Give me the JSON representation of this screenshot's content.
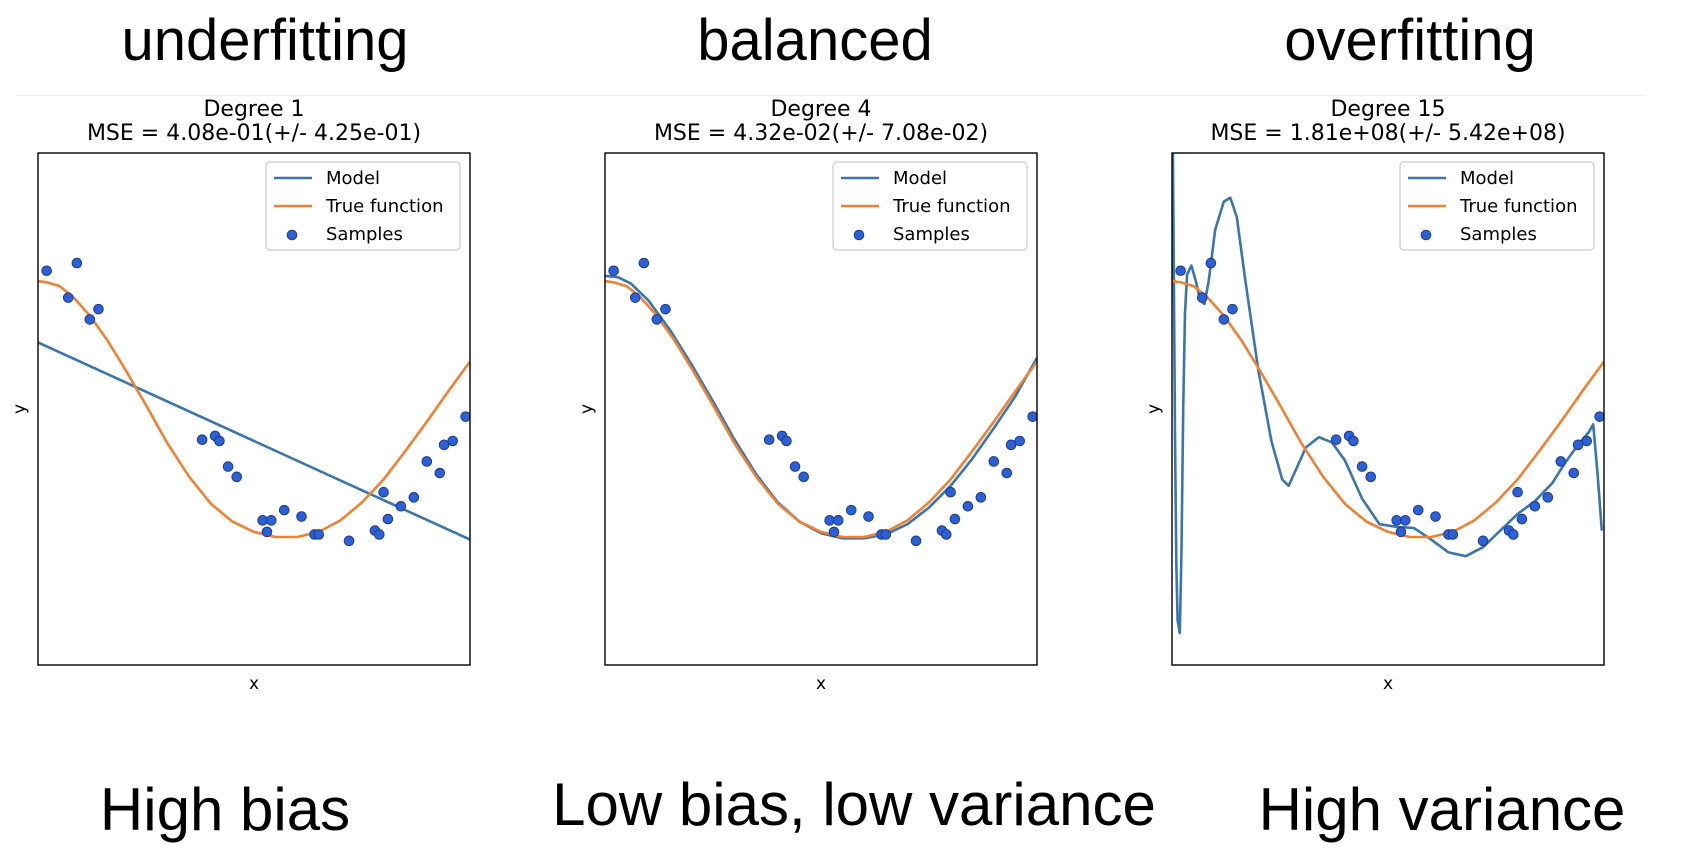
{
  "headings": [
    "underfitting",
    "balanced",
    "overfitting"
  ],
  "captions": [
    "High bias",
    "Low bias, low variance",
    "High variance"
  ],
  "colors": {
    "model": "#3a75ad",
    "true_function": "#f08132",
    "samples": "#2d5fd6",
    "sample_edge": "#1b3c8f"
  },
  "chart_data": [
    {
      "type": "line",
      "title": "Degree 1",
      "subtitle": "MSE = 4.08e-01(+/- 4.25e-01)",
      "xlabel": "x",
      "ylabel": "y",
      "xlim": [
        0,
        1
      ],
      "ylim": [
        -2,
        2
      ],
      "grid": false,
      "legend_position": "top-right",
      "legend": [
        "Model",
        "True function",
        "Samples"
      ],
      "series": [
        {
          "name": "Model",
          "kind": "line",
          "points": [
            [
              0,
              0.52
            ],
            [
              1,
              -1.02
            ]
          ]
        },
        {
          "name": "True function",
          "kind": "line",
          "points": [
            [
              0.0,
              1.0
            ],
            [
              0.02,
              0.99
            ],
            [
              0.05,
              0.96
            ],
            [
              0.08,
              0.88
            ],
            [
              0.12,
              0.73
            ],
            [
              0.16,
              0.54
            ],
            [
              0.2,
              0.32
            ],
            [
              0.25,
              0.03
            ],
            [
              0.3,
              -0.27
            ],
            [
              0.35,
              -0.53
            ],
            [
              0.4,
              -0.74
            ],
            [
              0.45,
              -0.88
            ],
            [
              0.5,
              -0.96
            ],
            [
              0.55,
              -1.0
            ],
            [
              0.6,
              -1.0
            ],
            [
              0.65,
              -0.96
            ],
            [
              0.7,
              -0.87
            ],
            [
              0.75,
              -0.73
            ],
            [
              0.8,
              -0.55
            ],
            [
              0.85,
              -0.33
            ],
            [
              0.9,
              -0.1
            ],
            [
              0.95,
              0.14
            ],
            [
              1.0,
              0.37
            ]
          ]
        },
        {
          "name": "Samples",
          "kind": "scatter",
          "points": [
            [
              0.02,
              1.08
            ],
            [
              0.07,
              0.87
            ],
            [
              0.09,
              1.14
            ],
            [
              0.12,
              0.7
            ],
            [
              0.14,
              0.78
            ],
            [
              0.38,
              -0.24
            ],
            [
              0.41,
              -0.21
            ],
            [
              0.42,
              -0.25
            ],
            [
              0.44,
              -0.45
            ],
            [
              0.46,
              -0.53
            ],
            [
              0.52,
              -0.87
            ],
            [
              0.53,
              -0.96
            ],
            [
              0.54,
              -0.87
            ],
            [
              0.57,
              -0.79
            ],
            [
              0.61,
              -0.84
            ],
            [
              0.64,
              -0.98
            ],
            [
              0.65,
              -0.98
            ],
            [
              0.72,
              -1.03
            ],
            [
              0.78,
              -0.95
            ],
            [
              0.79,
              -0.98
            ],
            [
              0.8,
              -0.65
            ],
            [
              0.81,
              -0.86
            ],
            [
              0.84,
              -0.76
            ],
            [
              0.87,
              -0.69
            ],
            [
              0.9,
              -0.41
            ],
            [
              0.93,
              -0.5
            ],
            [
              0.94,
              -0.28
            ],
            [
              0.96,
              -0.25
            ],
            [
              0.99,
              -0.06
            ]
          ]
        }
      ]
    },
    {
      "type": "line",
      "title": "Degree 4",
      "subtitle": "MSE = 4.32e-02(+/- 7.08e-02)",
      "xlabel": "x",
      "ylabel": "y",
      "xlim": [
        0,
        1
      ],
      "ylim": [
        -2,
        2
      ],
      "grid": false,
      "legend_position": "top-right",
      "legend": [
        "Model",
        "True function",
        "Samples"
      ],
      "series": [
        {
          "name": "Model",
          "kind": "line",
          "points": [
            [
              0.0,
              1.04
            ],
            [
              0.03,
              1.03
            ],
            [
              0.06,
              0.98
            ],
            [
              0.1,
              0.85
            ],
            [
              0.15,
              0.62
            ],
            [
              0.2,
              0.35
            ],
            [
              0.25,
              0.06
            ],
            [
              0.3,
              -0.24
            ],
            [
              0.35,
              -0.51
            ],
            [
              0.4,
              -0.73
            ],
            [
              0.45,
              -0.88
            ],
            [
              0.5,
              -0.97
            ],
            [
              0.55,
              -1.01
            ],
            [
              0.6,
              -1.01
            ],
            [
              0.65,
              -0.98
            ],
            [
              0.7,
              -0.9
            ],
            [
              0.75,
              -0.77
            ],
            [
              0.8,
              -0.6
            ],
            [
              0.85,
              -0.39
            ],
            [
              0.9,
              -0.15
            ],
            [
              0.95,
              0.1
            ],
            [
              1.0,
              0.4
            ]
          ]
        },
        {
          "name": "True function",
          "kind": "line",
          "points": [
            [
              0.0,
              1.0
            ],
            [
              0.02,
              0.99
            ],
            [
              0.05,
              0.96
            ],
            [
              0.08,
              0.88
            ],
            [
              0.12,
              0.73
            ],
            [
              0.16,
              0.54
            ],
            [
              0.2,
              0.32
            ],
            [
              0.25,
              0.03
            ],
            [
              0.3,
              -0.27
            ],
            [
              0.35,
              -0.53
            ],
            [
              0.4,
              -0.74
            ],
            [
              0.45,
              -0.88
            ],
            [
              0.5,
              -0.96
            ],
            [
              0.55,
              -1.0
            ],
            [
              0.6,
              -1.0
            ],
            [
              0.65,
              -0.96
            ],
            [
              0.7,
              -0.87
            ],
            [
              0.75,
              -0.73
            ],
            [
              0.8,
              -0.55
            ],
            [
              0.85,
              -0.33
            ],
            [
              0.9,
              -0.1
            ],
            [
              0.95,
              0.14
            ],
            [
              1.0,
              0.37
            ]
          ]
        },
        {
          "name": "Samples",
          "kind": "scatter",
          "points": [
            [
              0.02,
              1.08
            ],
            [
              0.07,
              0.87
            ],
            [
              0.09,
              1.14
            ],
            [
              0.12,
              0.7
            ],
            [
              0.14,
              0.78
            ],
            [
              0.38,
              -0.24
            ],
            [
              0.41,
              -0.21
            ],
            [
              0.42,
              -0.25
            ],
            [
              0.44,
              -0.45
            ],
            [
              0.46,
              -0.53
            ],
            [
              0.52,
              -0.87
            ],
            [
              0.53,
              -0.96
            ],
            [
              0.54,
              -0.87
            ],
            [
              0.57,
              -0.79
            ],
            [
              0.61,
              -0.84
            ],
            [
              0.64,
              -0.98
            ],
            [
              0.65,
              -0.98
            ],
            [
              0.72,
              -1.03
            ],
            [
              0.78,
              -0.95
            ],
            [
              0.79,
              -0.98
            ],
            [
              0.8,
              -0.65
            ],
            [
              0.81,
              -0.86
            ],
            [
              0.84,
              -0.76
            ],
            [
              0.87,
              -0.69
            ],
            [
              0.9,
              -0.41
            ],
            [
              0.93,
              -0.5
            ],
            [
              0.94,
              -0.28
            ],
            [
              0.96,
              -0.25
            ],
            [
              0.99,
              -0.06
            ]
          ]
        }
      ]
    },
    {
      "type": "line",
      "title": "Degree 15",
      "subtitle": "MSE = 1.81e+08(+/- 5.42e+08)",
      "xlabel": "x",
      "ylabel": "y",
      "xlim": [
        0,
        1
      ],
      "ylim": [
        -2,
        2
      ],
      "grid": false,
      "legend_position": "top-right",
      "legend": [
        "Model",
        "True function",
        "Samples"
      ],
      "series": [
        {
          "name": "Model",
          "kind": "line",
          "points": [
            [
              0.002,
              2.0
            ],
            [
              0.004,
              1.2
            ],
            [
              0.007,
              -0.2
            ],
            [
              0.01,
              -1.2
            ],
            [
              0.013,
              -1.65
            ],
            [
              0.018,
              -1.75
            ],
            [
              0.022,
              -1.1
            ],
            [
              0.026,
              0.0
            ],
            [
              0.03,
              0.75
            ],
            [
              0.035,
              1.05
            ],
            [
              0.045,
              1.12
            ],
            [
              0.055,
              1.0
            ],
            [
              0.065,
              0.85
            ],
            [
              0.075,
              0.82
            ],
            [
              0.085,
              1.0
            ],
            [
              0.1,
              1.4
            ],
            [
              0.12,
              1.62
            ],
            [
              0.135,
              1.65
            ],
            [
              0.15,
              1.5
            ],
            [
              0.17,
              1.0
            ],
            [
              0.2,
              0.3
            ],
            [
              0.23,
              -0.25
            ],
            [
              0.255,
              -0.55
            ],
            [
              0.27,
              -0.6
            ],
            [
              0.29,
              -0.45
            ],
            [
              0.31,
              -0.3
            ],
            [
              0.34,
              -0.22
            ],
            [
              0.37,
              -0.26
            ],
            [
              0.4,
              -0.4
            ],
            [
              0.44,
              -0.7
            ],
            [
              0.48,
              -0.9
            ],
            [
              0.52,
              -0.92
            ],
            [
              0.56,
              -0.93
            ],
            [
              0.6,
              -1.02
            ],
            [
              0.64,
              -1.12
            ],
            [
              0.68,
              -1.15
            ],
            [
              0.72,
              -1.08
            ],
            [
              0.76,
              -0.95
            ],
            [
              0.8,
              -0.82
            ],
            [
              0.84,
              -0.72
            ],
            [
              0.88,
              -0.58
            ],
            [
              0.91,
              -0.42
            ],
            [
              0.94,
              -0.28
            ],
            [
              0.965,
              -0.18
            ],
            [
              0.975,
              -0.12
            ],
            [
              0.985,
              -0.5
            ],
            [
              0.995,
              -0.95
            ]
          ]
        },
        {
          "name": "True function",
          "kind": "line",
          "points": [
            [
              0.0,
              1.0
            ],
            [
              0.02,
              0.99
            ],
            [
              0.05,
              0.96
            ],
            [
              0.08,
              0.88
            ],
            [
              0.12,
              0.73
            ],
            [
              0.16,
              0.54
            ],
            [
              0.2,
              0.32
            ],
            [
              0.25,
              0.03
            ],
            [
              0.3,
              -0.27
            ],
            [
              0.35,
              -0.53
            ],
            [
              0.4,
              -0.74
            ],
            [
              0.45,
              -0.88
            ],
            [
              0.5,
              -0.96
            ],
            [
              0.55,
              -1.0
            ],
            [
              0.6,
              -1.0
            ],
            [
              0.65,
              -0.96
            ],
            [
              0.7,
              -0.87
            ],
            [
              0.75,
              -0.73
            ],
            [
              0.8,
              -0.55
            ],
            [
              0.85,
              -0.33
            ],
            [
              0.9,
              -0.1
            ],
            [
              0.95,
              0.14
            ],
            [
              1.0,
              0.37
            ]
          ]
        },
        {
          "name": "Samples",
          "kind": "scatter",
          "points": [
            [
              0.02,
              1.08
            ],
            [
              0.07,
              0.87
            ],
            [
              0.09,
              1.14
            ],
            [
              0.12,
              0.7
            ],
            [
              0.14,
              0.78
            ],
            [
              0.38,
              -0.24
            ],
            [
              0.41,
              -0.21
            ],
            [
              0.42,
              -0.25
            ],
            [
              0.44,
              -0.45
            ],
            [
              0.46,
              -0.53
            ],
            [
              0.52,
              -0.87
            ],
            [
              0.53,
              -0.96
            ],
            [
              0.54,
              -0.87
            ],
            [
              0.57,
              -0.79
            ],
            [
              0.61,
              -0.84
            ],
            [
              0.64,
              -0.98
            ],
            [
              0.65,
              -0.98
            ],
            [
              0.72,
              -1.03
            ],
            [
              0.78,
              -0.95
            ],
            [
              0.79,
              -0.98
            ],
            [
              0.8,
              -0.65
            ],
            [
              0.81,
              -0.86
            ],
            [
              0.84,
              -0.76
            ],
            [
              0.87,
              -0.69
            ],
            [
              0.9,
              -0.41
            ],
            [
              0.93,
              -0.5
            ],
            [
              0.94,
              -0.28
            ],
            [
              0.96,
              -0.25
            ],
            [
              0.99,
              -0.06
            ]
          ]
        }
      ]
    }
  ]
}
